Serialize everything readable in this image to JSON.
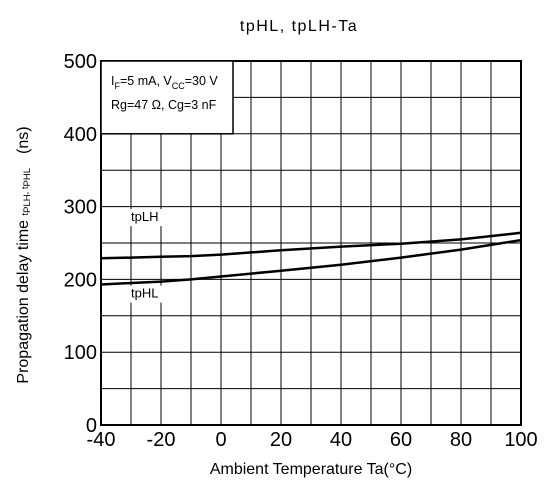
{
  "chart_data": {
    "type": "line",
    "title": "tpHL, tpLH-Ta",
    "xlabel": "Ambient Temperature Ta(°C)",
    "ylabel": {
      "main": "Propagation delay time",
      "sym1": "t",
      "sub1": "PLH",
      "sep": ",  ",
      "sym2": "t",
      "sub2": "PHL",
      "unit": "(ns)"
    },
    "xlim": [
      -40,
      100
    ],
    "ylim": [
      0,
      500
    ],
    "x_ticks": [
      "-40",
      "-20",
      "0",
      "20",
      "40",
      "60",
      "80",
      "100"
    ],
    "y_ticks": [
      "0",
      "100",
      "200",
      "300",
      "400",
      "500"
    ],
    "grid": true,
    "legend_box": {
      "line1": {
        "a": "I",
        "a_sub": "F",
        "b": "=5 mA, V",
        "b_sub": "CC",
        "c": "=30 V"
      },
      "line2": "Rg=47 Ω, Cg=3 nF"
    },
    "series": [
      {
        "name": "tpLH",
        "x": [
          -40,
          -30,
          -20,
          -10,
          0,
          20,
          40,
          60,
          80,
          100
        ],
        "y": [
          229,
          230,
          231,
          232,
          234,
          240,
          245,
          249,
          255,
          264
        ]
      },
      {
        "name": "tpHL",
        "x": [
          -40,
          -30,
          -20,
          -10,
          0,
          20,
          40,
          60,
          80,
          100
        ],
        "y": [
          193,
          195,
          197,
          200,
          204,
          212,
          220,
          230,
          241,
          254
        ]
      }
    ]
  }
}
